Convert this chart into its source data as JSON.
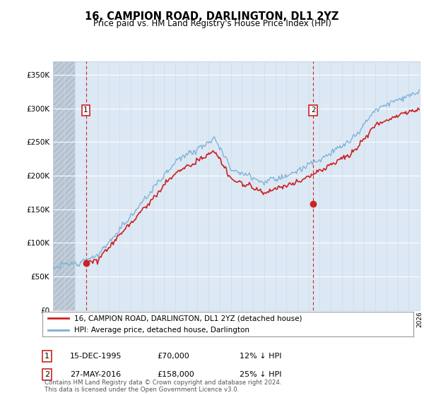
{
  "title": "16, CAMPION ROAD, DARLINGTON, DL1 2YZ",
  "subtitle": "Price paid vs. HM Land Registry's House Price Index (HPI)",
  "ylim": [
    0,
    370000
  ],
  "yticks": [
    0,
    50000,
    100000,
    150000,
    200000,
    250000,
    300000,
    350000
  ],
  "hpi_color": "#7bafd4",
  "price_color": "#cc2222",
  "annotation1_date": "15-DEC-1995",
  "annotation1_price": "£70,000",
  "annotation1_hpi": "12% ↓ HPI",
  "annotation2_date": "27-MAY-2016",
  "annotation2_price": "£158,000",
  "annotation2_hpi": "25% ↓ HPI",
  "legend1": "16, CAMPION ROAD, DARLINGTON, DL1 2YZ (detached house)",
  "legend2": "HPI: Average price, detached house, Darlington",
  "footnote": "Contains HM Land Registry data © Crown copyright and database right 2024.\nThis data is licensed under the Open Government Licence v3.0.",
  "plot_bg": "#dce8f4",
  "grid_color": "#ffffff",
  "hatch_color": "#c0ccd8",
  "x_start_year": 1993,
  "x_end_year": 2026,
  "sale1_year": 1995.958,
  "sale1_price": 70000,
  "sale2_year": 2016.41,
  "sale2_price": 158000
}
